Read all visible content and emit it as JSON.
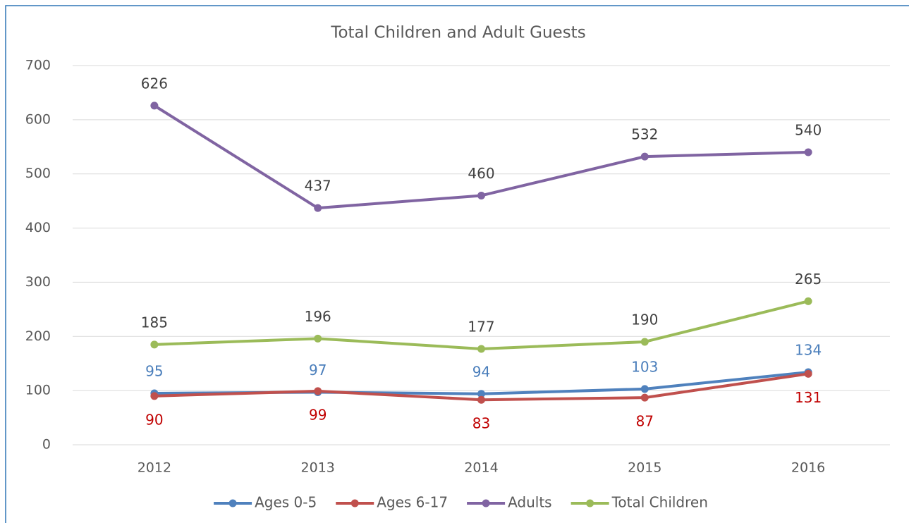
{
  "chart_data": {
    "type": "line",
    "title": "Total Children and Adult Guests",
    "categories": [
      "2012",
      "2013",
      "2014",
      "2015",
      "2016"
    ],
    "series": [
      {
        "name": "Ages 0-5",
        "color": "#4f81bd",
        "label_color": "#4a7ebb",
        "label_position": "above",
        "values": [
          95,
          97,
          94,
          103,
          134
        ]
      },
      {
        "name": "Ages 6-17",
        "color": "#c0504d",
        "label_color": "#c00000",
        "label_position": "below",
        "values": [
          90,
          99,
          83,
          87,
          131
        ]
      },
      {
        "name": "Adults",
        "color": "#8064a2",
        "label_color": "#404040",
        "label_position": "above",
        "values": [
          626,
          437,
          460,
          532,
          540
        ]
      },
      {
        "name": "Total Children",
        "color": "#9bbb59",
        "label_color": "#404040",
        "label_position": "above",
        "values": [
          185,
          196,
          177,
          190,
          265
        ]
      }
    ],
    "ylim": [
      0,
      700
    ],
    "yticks": [
      0,
      100,
      200,
      300,
      400,
      500,
      600,
      700
    ],
    "grid": true,
    "legend": "bottom"
  }
}
